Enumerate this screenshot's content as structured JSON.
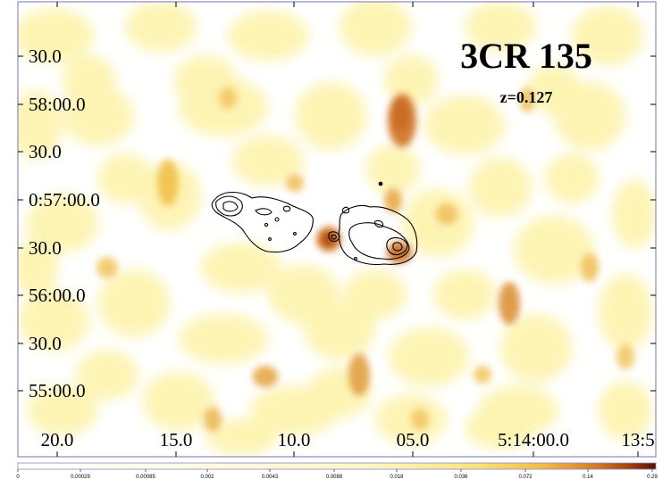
{
  "image": {
    "title": "3CR 135",
    "subtitle": "z=0.127",
    "dec_ticks": [
      "30.0",
      "58:00.0",
      "30.0",
      "0:57:00.0",
      "30.0",
      "56:00.0",
      "30.0",
      "55:00.0"
    ],
    "ra_ticks": [
      "20.0",
      "15.0",
      "10.0",
      "05.0",
      "5:14:00.0",
      "13:5"
    ],
    "colorbar_ticks": [
      "0",
      "0.00029",
      "0.00085",
      "0.002",
      "0.0043",
      "0.0088",
      "0.018",
      "0.036",
      "0.072",
      "0.14",
      "0.29"
    ],
    "colors": {
      "low": "#fdf3b0",
      "mid": "#f1c04a",
      "high": "#d0701c",
      "peak": "#8b2a05",
      "frame": "#8a8ac0",
      "contour": "#000000"
    }
  }
}
